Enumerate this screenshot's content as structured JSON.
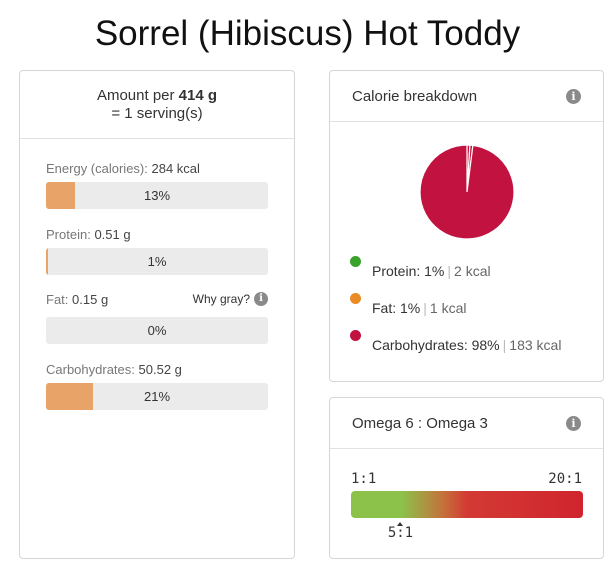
{
  "page": {
    "title": "Sorrel (Hibiscus) Hot Toddy"
  },
  "nutrition": {
    "amount_prefix": "Amount per",
    "amount_value": "414 g",
    "serving_line": "= 1 serving(s)",
    "why_gray": "Why gray?",
    "nutrients": [
      {
        "label": "Energy (calories):",
        "value": "284 kcal",
        "percent_text": "13%",
        "percent": 13
      },
      {
        "label": "Protein:",
        "value": "0.51 g",
        "percent_text": "1%",
        "percent": 1
      },
      {
        "label": "Fat:",
        "value": "0.15 g",
        "percent_text": "0%",
        "percent": 0
      },
      {
        "label": "Carbohydrates:",
        "value": "50.52 g",
        "percent_text": "21%",
        "percent": 21
      }
    ]
  },
  "calorie_breakdown": {
    "title": "Calorie breakdown",
    "legend": [
      {
        "name": "Protein:",
        "percent": "1%",
        "kcal": "2 kcal",
        "color": "#3aa12c"
      },
      {
        "name": "Fat:",
        "percent": "1%",
        "kcal": "1 kcal",
        "color": "#ea8b25"
      },
      {
        "name": "Carbohydrates:",
        "percent": "98%",
        "kcal": "183 kcal",
        "color": "#c2123f"
      }
    ]
  },
  "chart_data": {
    "type": "pie",
    "categories": [
      "Protein",
      "Fat",
      "Carbohydrates"
    ],
    "values": [
      1,
      1,
      98
    ],
    "colors": [
      "#c2123f",
      "#c2123f",
      "#c2123f"
    ]
  },
  "omega": {
    "title": "Omega 6 : Omega 3",
    "scale_min": "1:1",
    "scale_max": "20:1",
    "ratio_label": "5:1",
    "ratio_value": 5,
    "scale_min_value": 1,
    "scale_max_value": 20,
    "colors": {
      "good": "#8cc14a",
      "bad": "#d0242d"
    }
  },
  "icons": {
    "info": "info-icon"
  }
}
